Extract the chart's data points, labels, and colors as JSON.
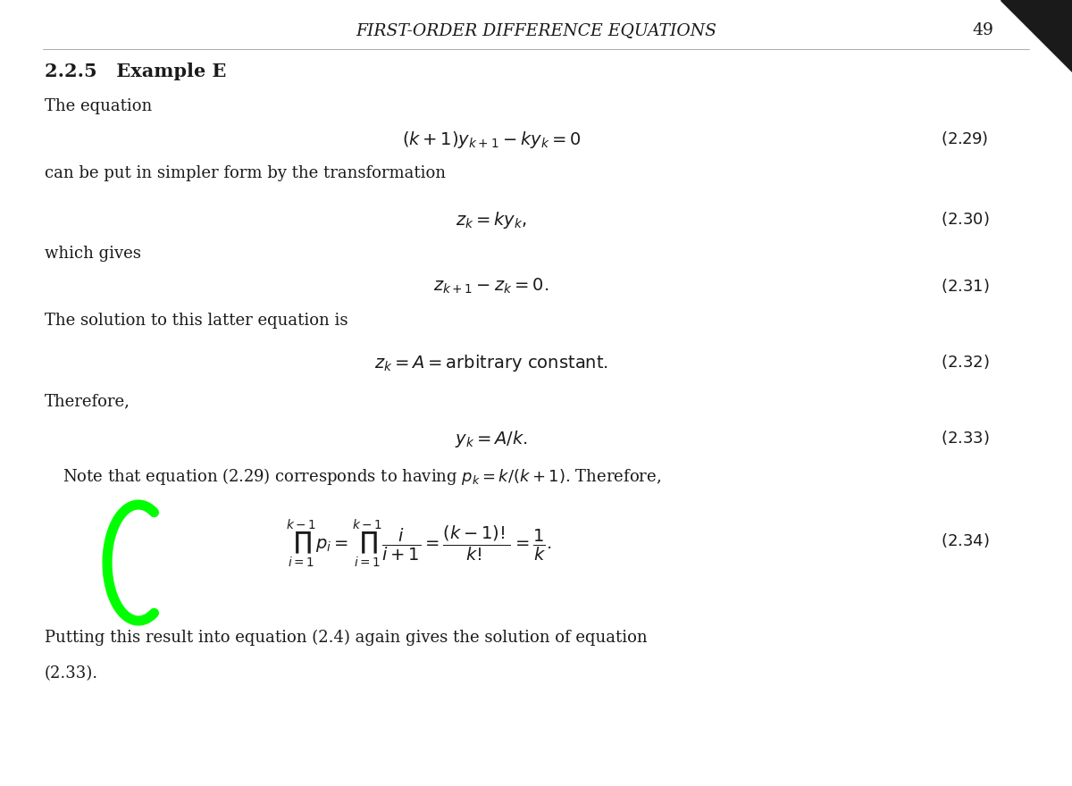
{
  "title": "FIRST-ORDER DIFFERENCE EQUATIONS",
  "page_number": "49",
  "background_color": "#ffffff",
  "text_color": "#1a1a1a",
  "section": "2.2.5   Example E",
  "line1": "The equation",
  "eq229": "(k + 1)y_{k+1} - ky_k = 0",
  "eq229_num": "(2.29)",
  "line2": "can be put in simpler form by the transformation",
  "eq230": "z_k = ky_k,",
  "eq230_num": "(2.30)",
  "line3": "which gives",
  "eq231": "z_{k+1} - z_k = 0.",
  "eq231_num": "(2.31)",
  "line4": "The solution to this latter equation is",
  "eq232": "z_k = A = \\mathrm{arbitrary\\ constant.}",
  "eq232_num": "(2.32)",
  "line5": "Therefore,",
  "eq233": "y_k = A/k.",
  "eq233_num": "(2.33)",
  "line6": "Note that equation (2.29) corresponds to having $p_k = k/(k+1)$. Therefore,",
  "eq234_num": "(2.34)",
  "line7": "Putting this result into equation (2.4) again gives the solution of equation (2.33).",
  "green_color": "#00ff00"
}
